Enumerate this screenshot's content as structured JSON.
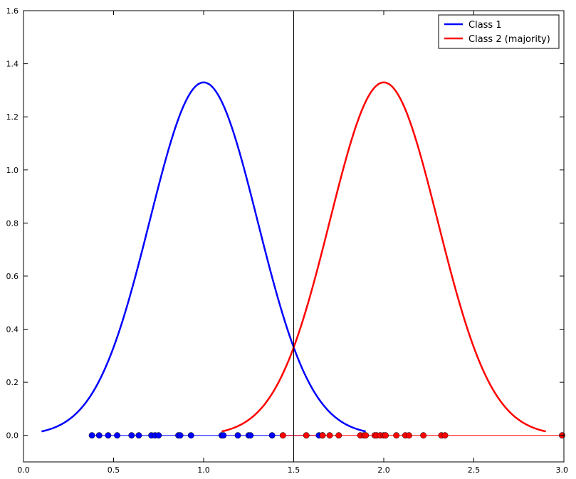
{
  "chart_data": {
    "type": "line",
    "title": "",
    "xlabel": "",
    "ylabel": "",
    "xlim": [
      0.0,
      3.0
    ],
    "ylim": [
      -0.1,
      1.6
    ],
    "x_ticks": [
      0.0,
      0.5,
      1.0,
      1.5,
      2.0,
      2.5,
      3.0
    ],
    "x_tick_labels": [
      "0.0",
      "0.5",
      "1.0",
      "1.5",
      "2.0",
      "2.5",
      "3.0"
    ],
    "y_ticks": [
      0.0,
      0.2,
      0.4,
      0.6,
      0.8,
      1.0,
      1.2,
      1.4,
      1.6
    ],
    "y_tick_labels": [
      "0.0",
      "0.2",
      "0.4",
      "0.6",
      "0.8",
      "1.0",
      "1.2",
      "1.4",
      "1.6"
    ],
    "grid": false,
    "legend_position": "top-right",
    "vertical_line_x": 1.5,
    "series": [
      {
        "name": "Class 1",
        "color": "#0000ff",
        "curve": {
          "mean": 1.0,
          "std": 0.3,
          "x_range": [
            0.1,
            1.9
          ]
        },
        "points_y": 0.0,
        "points_x": [
          0.38,
          0.42,
          0.47,
          0.52,
          0.6,
          0.64,
          0.71,
          0.73,
          0.75,
          0.86,
          0.87,
          0.93,
          1.1,
          1.11,
          1.19,
          1.25,
          1.26,
          1.38,
          1.64,
          1.66
        ]
      },
      {
        "name": "Class 2 (majority)",
        "color": "#ff0000",
        "curve": {
          "mean": 2.0,
          "std": 0.3,
          "x_range": [
            1.1,
            2.9
          ]
        },
        "points_y": 0.0,
        "points_x": [
          1.44,
          1.57,
          1.66,
          1.7,
          1.75,
          1.87,
          1.89,
          1.9,
          1.95,
          1.96,
          1.98,
          2.0,
          2.01,
          2.07,
          2.12,
          2.14,
          2.22,
          2.32,
          2.34,
          2.99
        ]
      }
    ]
  }
}
